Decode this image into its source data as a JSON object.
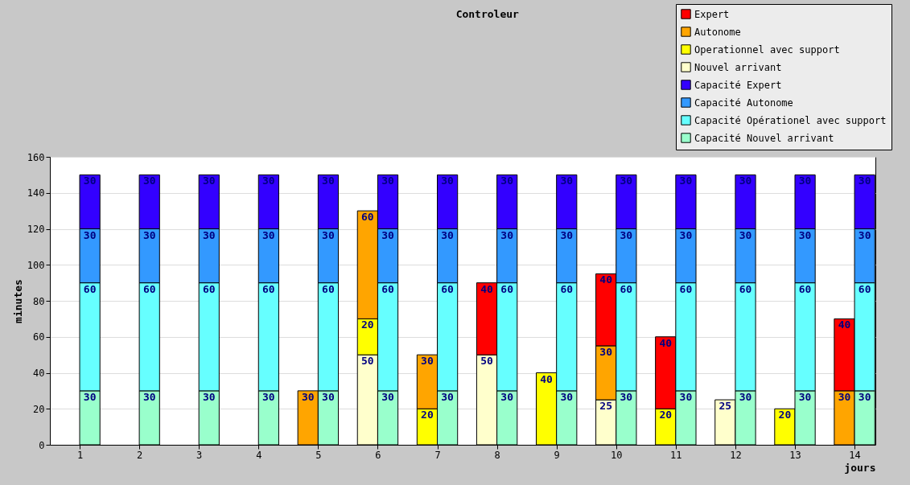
{
  "chart_data": {
    "type": "bar",
    "title": "Controleur",
    "xlabel": "jours",
    "ylabel": "minutes",
    "xlim": [
      0.5,
      14.35
    ],
    "xticks": [
      1,
      2,
      3,
      4,
      5,
      6,
      7,
      8,
      9,
      10,
      11,
      12,
      13,
      14
    ],
    "ylim": [
      0,
      160
    ],
    "yticks": [
      0,
      20,
      40,
      60,
      80,
      100,
      120,
      140,
      160
    ],
    "grid": "y",
    "legend": "top right",
    "data_labels": true,
    "series": [
      {
        "name": "Nouvel arrivant",
        "color": "#ffffcc",
        "x": [
          null,
          null,
          null,
          null,
          null,
          5.83,
          null,
          7.83,
          null,
          9.83,
          null,
          11.83,
          null,
          null
        ],
        "values": [
          null,
          null,
          null,
          null,
          null,
          50,
          null,
          50,
          null,
          25,
          null,
          25,
          null,
          null
        ],
        "base": [
          null,
          null,
          null,
          null,
          null,
          0,
          null,
          0,
          null,
          0,
          null,
          0,
          null,
          null
        ]
      },
      {
        "name": "Operationnel avec support",
        "color": "#ffff00",
        "x": [
          null,
          null,
          null,
          null,
          null,
          5.83,
          6.83,
          null,
          8.83,
          null,
          10.83,
          null,
          12.83,
          null
        ],
        "values": [
          null,
          null,
          null,
          null,
          null,
          20,
          20,
          null,
          40,
          null,
          20,
          null,
          20,
          null
        ],
        "base": [
          null,
          null,
          null,
          null,
          null,
          50,
          0,
          null,
          0,
          null,
          0,
          null,
          0,
          null
        ]
      },
      {
        "name": "Autonome",
        "color": "#ffa500",
        "x": [
          null,
          null,
          null,
          null,
          4.83,
          5.83,
          6.83,
          null,
          null,
          9.83,
          null,
          null,
          null,
          13.83
        ],
        "values": [
          null,
          null,
          null,
          null,
          30,
          60,
          30,
          null,
          null,
          30,
          null,
          null,
          null,
          30
        ],
        "base": [
          null,
          null,
          null,
          null,
          0,
          70,
          20,
          null,
          null,
          25,
          null,
          null,
          null,
          0
        ]
      },
      {
        "name": "Expert",
        "color": "#ff0000",
        "x": [
          null,
          null,
          null,
          null,
          null,
          null,
          null,
          7.83,
          null,
          9.83,
          10.83,
          null,
          null,
          13.83
        ],
        "values": [
          null,
          null,
          null,
          null,
          null,
          null,
          null,
          40,
          null,
          40,
          40,
          null,
          null,
          40
        ],
        "base": [
          null,
          null,
          null,
          null,
          null,
          null,
          null,
          50,
          null,
          55,
          20,
          null,
          null,
          30
        ]
      },
      {
        "name": "Capacité Nouvel arrivant",
        "color": "#99ffcc",
        "x": [
          1.17,
          2.17,
          3.17,
          4.17,
          5.17,
          6.17,
          7.17,
          8.17,
          9.17,
          10.17,
          11.17,
          12.17,
          13.17,
          14.17
        ],
        "values": [
          30,
          30,
          30,
          30,
          30,
          30,
          30,
          30,
          30,
          30,
          30,
          30,
          30,
          30
        ],
        "base": [
          0,
          0,
          0,
          0,
          0,
          0,
          0,
          0,
          0,
          0,
          0,
          0,
          0,
          0
        ]
      },
      {
        "name": "Capacité Opérationel avec support",
        "color": "#66ffff",
        "x": [
          1.17,
          2.17,
          3.17,
          4.17,
          5.17,
          6.17,
          7.17,
          8.17,
          9.17,
          10.17,
          11.17,
          12.17,
          13.17,
          14.17
        ],
        "values": [
          60,
          60,
          60,
          60,
          60,
          60,
          60,
          60,
          60,
          60,
          60,
          60,
          60,
          60
        ],
        "base": [
          30,
          30,
          30,
          30,
          30,
          30,
          30,
          30,
          30,
          30,
          30,
          30,
          30,
          30
        ]
      },
      {
        "name": "Capacité Autonome",
        "color": "#3399ff",
        "x": [
          1.17,
          2.17,
          3.17,
          4.17,
          5.17,
          6.17,
          7.17,
          8.17,
          9.17,
          10.17,
          11.17,
          12.17,
          13.17,
          14.17
        ],
        "values": [
          30,
          30,
          30,
          30,
          30,
          30,
          30,
          30,
          30,
          30,
          30,
          30,
          30,
          30
        ],
        "base": [
          90,
          90,
          90,
          90,
          90,
          90,
          90,
          90,
          90,
          90,
          90,
          90,
          90,
          90
        ]
      },
      {
        "name": "Capacité Expert",
        "color": "#3300ff",
        "x": [
          1.17,
          2.17,
          3.17,
          4.17,
          5.17,
          6.17,
          7.17,
          8.17,
          9.17,
          10.17,
          11.17,
          12.17,
          13.17,
          14.17
        ],
        "values": [
          30,
          30,
          30,
          30,
          30,
          30,
          30,
          30,
          30,
          30,
          30,
          30,
          30,
          30
        ],
        "base": [
          120,
          120,
          120,
          120,
          120,
          120,
          120,
          120,
          120,
          120,
          120,
          120,
          120,
          120
        ]
      }
    ]
  }
}
